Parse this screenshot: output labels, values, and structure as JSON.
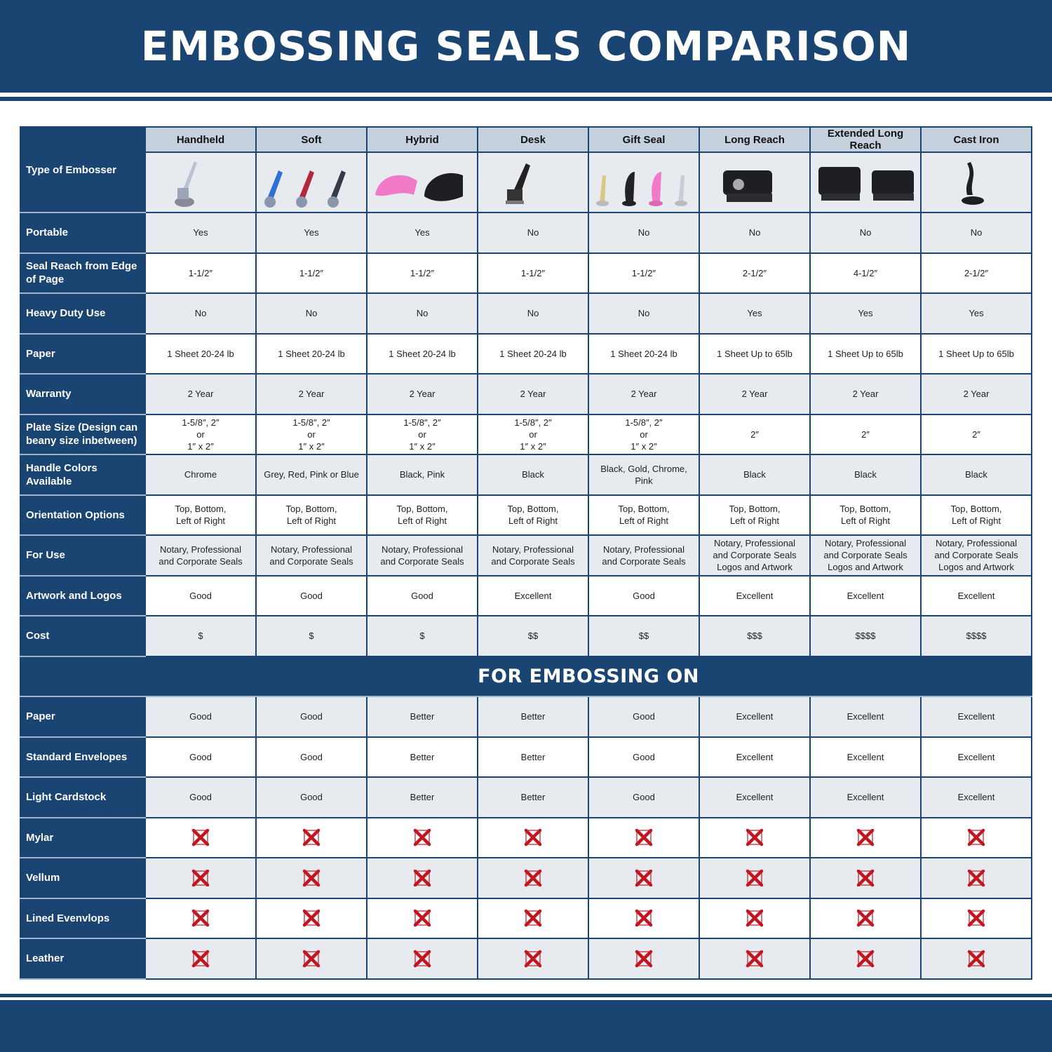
{
  "title": "EMBOSSING SEALS COMPARISON",
  "type_label": "Type of Embosser",
  "columns": [
    "Handheld",
    "Soft",
    "Hybrid",
    "Desk",
    "Gift Seal",
    "Long Reach",
    "Extended Long Reach",
    "Cast Iron"
  ],
  "column_images": [
    "chrome-handheld-embosser",
    "blue-red-grey-soft-embossers",
    "pink-black-hybrid-embossers",
    "black-desk-embosser",
    "gold-black-pink-chrome-gift-seals",
    "black-long-reach-embosser",
    "black-extended-long-reach-embossers",
    "black-cast-iron-embosser"
  ],
  "rows": [
    {
      "label": "Portable",
      "values": [
        "Yes",
        "Yes",
        "Yes",
        "No",
        "No",
        "No",
        "No",
        "No"
      ]
    },
    {
      "label": "Seal Reach from Edge of Page",
      "values": [
        "1-1/2″",
        "1-1/2″",
        "1-1/2″",
        "1-1/2″",
        "1-1/2″",
        "2-1/2″",
        "4-1/2″",
        "2-1/2″"
      ]
    },
    {
      "label": "Heavy Duty Use",
      "values": [
        "No",
        "No",
        "No",
        "No",
        "No",
        "Yes",
        "Yes",
        "Yes"
      ]
    },
    {
      "label": "Paper",
      "values": [
        "1 Sheet 20-24 lb",
        "1 Sheet 20-24 lb",
        "1 Sheet 20-24 lb",
        "1 Sheet 20-24 lb",
        "1 Sheet 20-24 lb",
        "1 Sheet Up to 65lb",
        "1 Sheet Up to 65lb",
        "1 Sheet Up to 65lb"
      ]
    },
    {
      "label": "Warranty",
      "values": [
        "2 Year",
        "2 Year",
        "2 Year",
        "2 Year",
        "2 Year",
        "2 Year",
        "2 Year",
        "2 Year"
      ]
    },
    {
      "label": "Plate Size (Design can beany size inbetween)",
      "values": [
        "1-5/8″, 2″\nor\n1″ x 2″",
        "1-5/8″, 2″\nor\n1″ x 2″",
        "1-5/8″, 2″\nor\n1″ x 2″",
        "1-5/8″, 2″\nor\n1″ x 2″",
        "1-5/8″, 2″\nor\n1″ x 2″",
        "2″",
        "2″",
        "2″"
      ]
    },
    {
      "label": "Handle Colors Available",
      "values": [
        "Chrome",
        "Grey, Red, Pink or Blue",
        "Black, Pink",
        "Black",
        "Black, Gold, Chrome, Pink",
        "Black",
        "Black",
        "Black"
      ]
    },
    {
      "label": "Orientation Options",
      "values": [
        "Top, Bottom,\nLeft of Right",
        "Top, Bottom,\nLeft of Right",
        "Top, Bottom,\nLeft of Right",
        "Top, Bottom,\nLeft of Right",
        "Top, Bottom,\nLeft of Right",
        "Top, Bottom,\nLeft of Right",
        "Top, Bottom,\nLeft of Right",
        "Top, Bottom,\nLeft of Right"
      ]
    },
    {
      "label": "For Use",
      "values": [
        "Notary, Professional\nand Corporate Seals",
        "Notary, Professional\nand Corporate Seals",
        "Notary, Professional\nand Corporate Seals",
        "Notary, Professional\nand Corporate Seals",
        "Notary, Professional\nand Corporate Seals",
        "Notary, Professional\nand Corporate Seals\nLogos and Artwork",
        "Notary, Professional\nand Corporate Seals\nLogos and Artwork",
        "Notary, Professional\nand Corporate Seals\nLogos and Artwork"
      ]
    },
    {
      "label": "Artwork and Logos",
      "values": [
        "Good",
        "Good",
        "Good",
        "Excellent",
        "Good",
        "Excellent",
        "Excellent",
        "Excellent"
      ]
    },
    {
      "label": "Cost",
      "values": [
        "$",
        "$",
        "$",
        "$$",
        "$$",
        "$$$",
        "$$$$",
        "$$$$"
      ]
    }
  ],
  "section_title": "FOR EMBOSSING ON",
  "embossing_rows": [
    {
      "label": "Paper",
      "values": [
        "Good",
        "Good",
        "Better",
        "Better",
        "Good",
        "Excellent",
        "Excellent",
        "Excellent"
      ]
    },
    {
      "label": "Standard Envelopes",
      "values": [
        "Good",
        "Good",
        "Better",
        "Better",
        "Good",
        "Excellent",
        "Excellent",
        "Excellent"
      ]
    },
    {
      "label": "Light Cardstock",
      "values": [
        "Good",
        "Good",
        "Better",
        "Better",
        "Good",
        "Excellent",
        "Excellent",
        "Excellent"
      ]
    },
    {
      "label": "Mylar",
      "values": [
        "x",
        "x",
        "x",
        "x",
        "x",
        "x",
        "x",
        "x"
      ]
    },
    {
      "label": "Vellum",
      "values": [
        "x",
        "x",
        "x",
        "x",
        "x",
        "x",
        "x",
        "x"
      ]
    },
    {
      "label": "Lined Evenvlops",
      "values": [
        "x",
        "x",
        "x",
        "x",
        "x",
        "x",
        "x",
        "x"
      ]
    },
    {
      "label": "Leather",
      "values": [
        "x",
        "x",
        "x",
        "x",
        "x",
        "x",
        "x",
        "x"
      ]
    }
  ],
  "colors": {
    "navy": "#1a4472",
    "header_gray": "#c5d1dc",
    "row_gray": "#e7ebef",
    "x_red": "#c0161f"
  }
}
